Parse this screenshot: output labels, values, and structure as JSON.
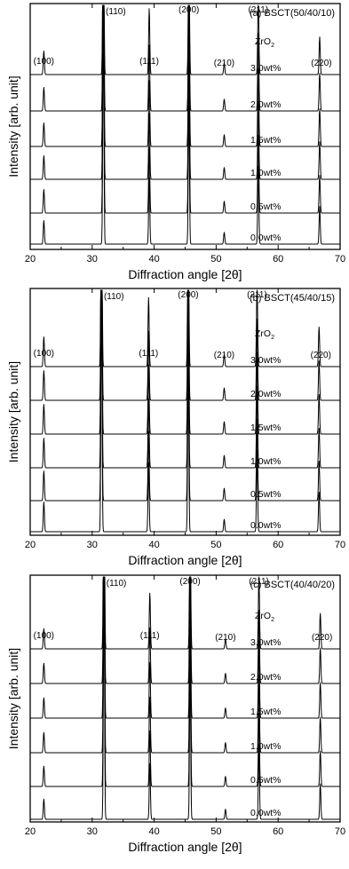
{
  "chart_data": [
    {
      "type": "line",
      "title": "(a) BSCT(50/40/10)",
      "xlabel": "Diffraction angle [2θ]",
      "ylabel": "Intensity [arb. unit]",
      "xlim": [
        20,
        70
      ],
      "xticks": [
        "20",
        "30",
        "40",
        "50",
        "60",
        "70"
      ],
      "legend_title": "ZrO2",
      "peaks": [
        {
          "label": "(100)",
          "x": 22.2,
          "height": 0.1
        },
        {
          "label": "(110)",
          "x": 31.8,
          "height": 1.0
        },
        {
          "label": "(111)",
          "x": 39.2,
          "height": 0.28
        },
        {
          "label": "(200)",
          "x": 45.6,
          "height": 0.62
        },
        {
          "label": "(210)",
          "x": 51.3,
          "height": 0.05
        },
        {
          "label": "(211)",
          "x": 56.8,
          "height": 0.33
        },
        {
          "label": "(220)",
          "x": 66.7,
          "height": 0.16
        }
      ],
      "series": [
        {
          "name": "3.0wt%"
        },
        {
          "name": "2.0wt%"
        },
        {
          "name": "1.5wt%"
        },
        {
          "name": "1.0wt%"
        },
        {
          "name": "0.5wt%"
        },
        {
          "name": "0.0wt%"
        }
      ]
    },
    {
      "type": "line",
      "title": "(b) BSCT(45/40/15)",
      "xlabel": "Diffraction angle [2θ]",
      "ylabel": "Intensity [arb. unit]",
      "xlim": [
        20,
        70
      ],
      "xticks": [
        "20",
        "30",
        "40",
        "50",
        "60",
        "70"
      ],
      "legend_title": "ZrO2",
      "peaks": [
        {
          "label": "(100)",
          "x": 22.2,
          "height": 0.12
        },
        {
          "label": "(110)",
          "x": 31.5,
          "height": 1.0
        },
        {
          "label": "(111)",
          "x": 39.1,
          "height": 0.28
        },
        {
          "label": "(200)",
          "x": 45.5,
          "height": 0.7
        },
        {
          "label": "(210)",
          "x": 51.3,
          "height": 0.05
        },
        {
          "label": "(211)",
          "x": 56.6,
          "height": 0.33
        },
        {
          "label": "(220)",
          "x": 66.6,
          "height": 0.16
        }
      ],
      "series": [
        {
          "name": "3.0wt%"
        },
        {
          "name": "2.0wt%"
        },
        {
          "name": "1.5wt%"
        },
        {
          "name": "1.0wt%"
        },
        {
          "name": "0.5wt%"
        },
        {
          "name": "0.0wt%"
        }
      ]
    },
    {
      "type": "line",
      "title": "(c) BSCT(40/40/20)",
      "xlabel": "Diffraction angle [2θ]",
      "ylabel": "Intensity [arb. unit]",
      "xlim": [
        20,
        70
      ],
      "xticks": [
        "20",
        "30",
        "40",
        "50",
        "60",
        "70"
      ],
      "legend_title": "ZrO2",
      "peaks": [
        {
          "label": "(100)",
          "x": 22.2,
          "height": 0.08
        },
        {
          "label": "(110)",
          "x": 31.9,
          "height": 1.0
        },
        {
          "label": "(111)",
          "x": 39.3,
          "height": 0.22
        },
        {
          "label": "(200)",
          "x": 45.8,
          "height": 0.62
        },
        {
          "label": "(210)",
          "x": 51.5,
          "height": 0.04
        },
        {
          "label": "(211)",
          "x": 56.9,
          "height": 0.29
        },
        {
          "label": "(220)",
          "x": 66.8,
          "height": 0.14
        }
      ],
      "series": [
        {
          "name": "3.0wt%"
        },
        {
          "name": "2.0wt%"
        },
        {
          "name": "1.5wt%"
        },
        {
          "name": "1.0wt%"
        },
        {
          "name": "0.5wt%"
        },
        {
          "name": "0.0wt%"
        }
      ]
    }
  ]
}
